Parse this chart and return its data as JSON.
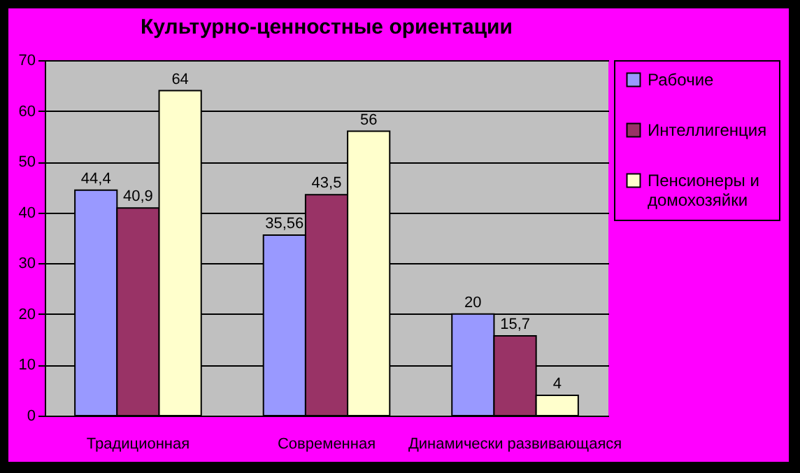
{
  "chart_data": {
    "type": "bar",
    "title": "Культурно-ценностные ориентации",
    "categories": [
      "Традиционная",
      "Современная",
      "Динамически развивающаяся"
    ],
    "series": [
      {
        "name": "Рабочие",
        "color": "#9999ff",
        "values": [
          44.4,
          35.56,
          20
        ],
        "value_labels": [
          "44,4",
          "35,56",
          "20"
        ]
      },
      {
        "name": "Интеллигенция",
        "color": "#993366",
        "values": [
          40.9,
          43.5,
          15.7
        ],
        "value_labels": [
          "40,9",
          "43,5",
          "15,7"
        ]
      },
      {
        "name": "Пенсионеры и домохозяйки",
        "color": "#ffffcc",
        "values": [
          64,
          56,
          4
        ],
        "value_labels": [
          "64",
          "56",
          "4"
        ]
      }
    ],
    "ylim": [
      0,
      70
    ],
    "yticks": [
      0,
      10,
      20,
      30,
      40,
      50,
      60,
      70
    ],
    "grid": "y",
    "legend": "right"
  }
}
